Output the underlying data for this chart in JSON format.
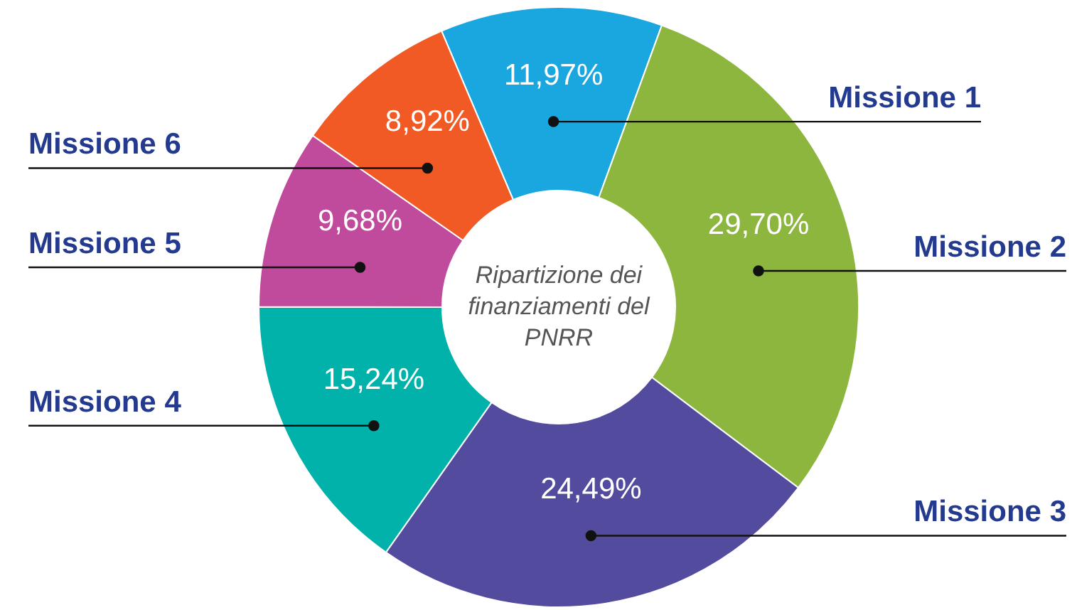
{
  "chart_data": {
    "type": "donut",
    "title": "Ripartizione dei finanziamenti del PNRR",
    "categories": [
      "Missione 1",
      "Missione 2",
      "Missione 3",
      "Missione 4",
      "Missione 5",
      "Missione 6"
    ],
    "values": [
      11.97,
      29.7,
      24.49,
      15.24,
      9.68,
      8.92
    ],
    "value_labels": [
      "11,97%",
      "29,70%",
      "24,49%",
      "15,24%",
      "9,68%",
      "8,92%"
    ],
    "colors": [
      "#1aa7e0",
      "#8db63f",
      "#534b9e",
      "#00b2a9",
      "#c04a9c",
      "#f15a24"
    ]
  }
}
